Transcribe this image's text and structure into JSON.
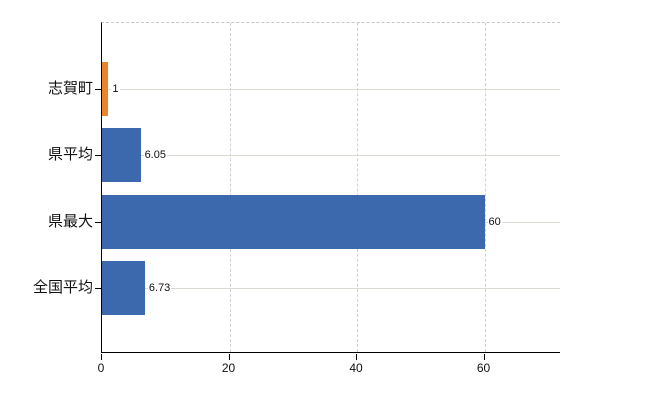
{
  "chart_data": {
    "type": "bar",
    "orientation": "horizontal",
    "title": "",
    "xlabel": "",
    "ylabel": "",
    "categories": [
      "志賀町",
      "県平均",
      "県最大",
      "全国平均"
    ],
    "values": [
      1,
      6.05,
      60,
      6.73
    ],
    "value_labels": [
      "1",
      "6.05",
      "60",
      "6.73"
    ],
    "bar_colors": [
      "#EC8528",
      "#3C69AE",
      "#3C69AE",
      "#3C69AE"
    ],
    "xtick_labels": [
      "0",
      "20",
      "40",
      "60"
    ],
    "xtick_values": [
      0,
      20,
      40,
      60
    ],
    "xlim": [
      0,
      72
    ],
    "grid": true,
    "legend": false,
    "colors": {
      "bar_default": "#3C69AE",
      "bar_highlight": "#EC8528",
      "axis": "#000000",
      "horizontal_grid": "#D7DCD2",
      "vertical_grid": "#D2CED6",
      "plot_top_border": "#C9C5CC",
      "text": "#111111",
      "background": "#FFFFFF"
    }
  }
}
